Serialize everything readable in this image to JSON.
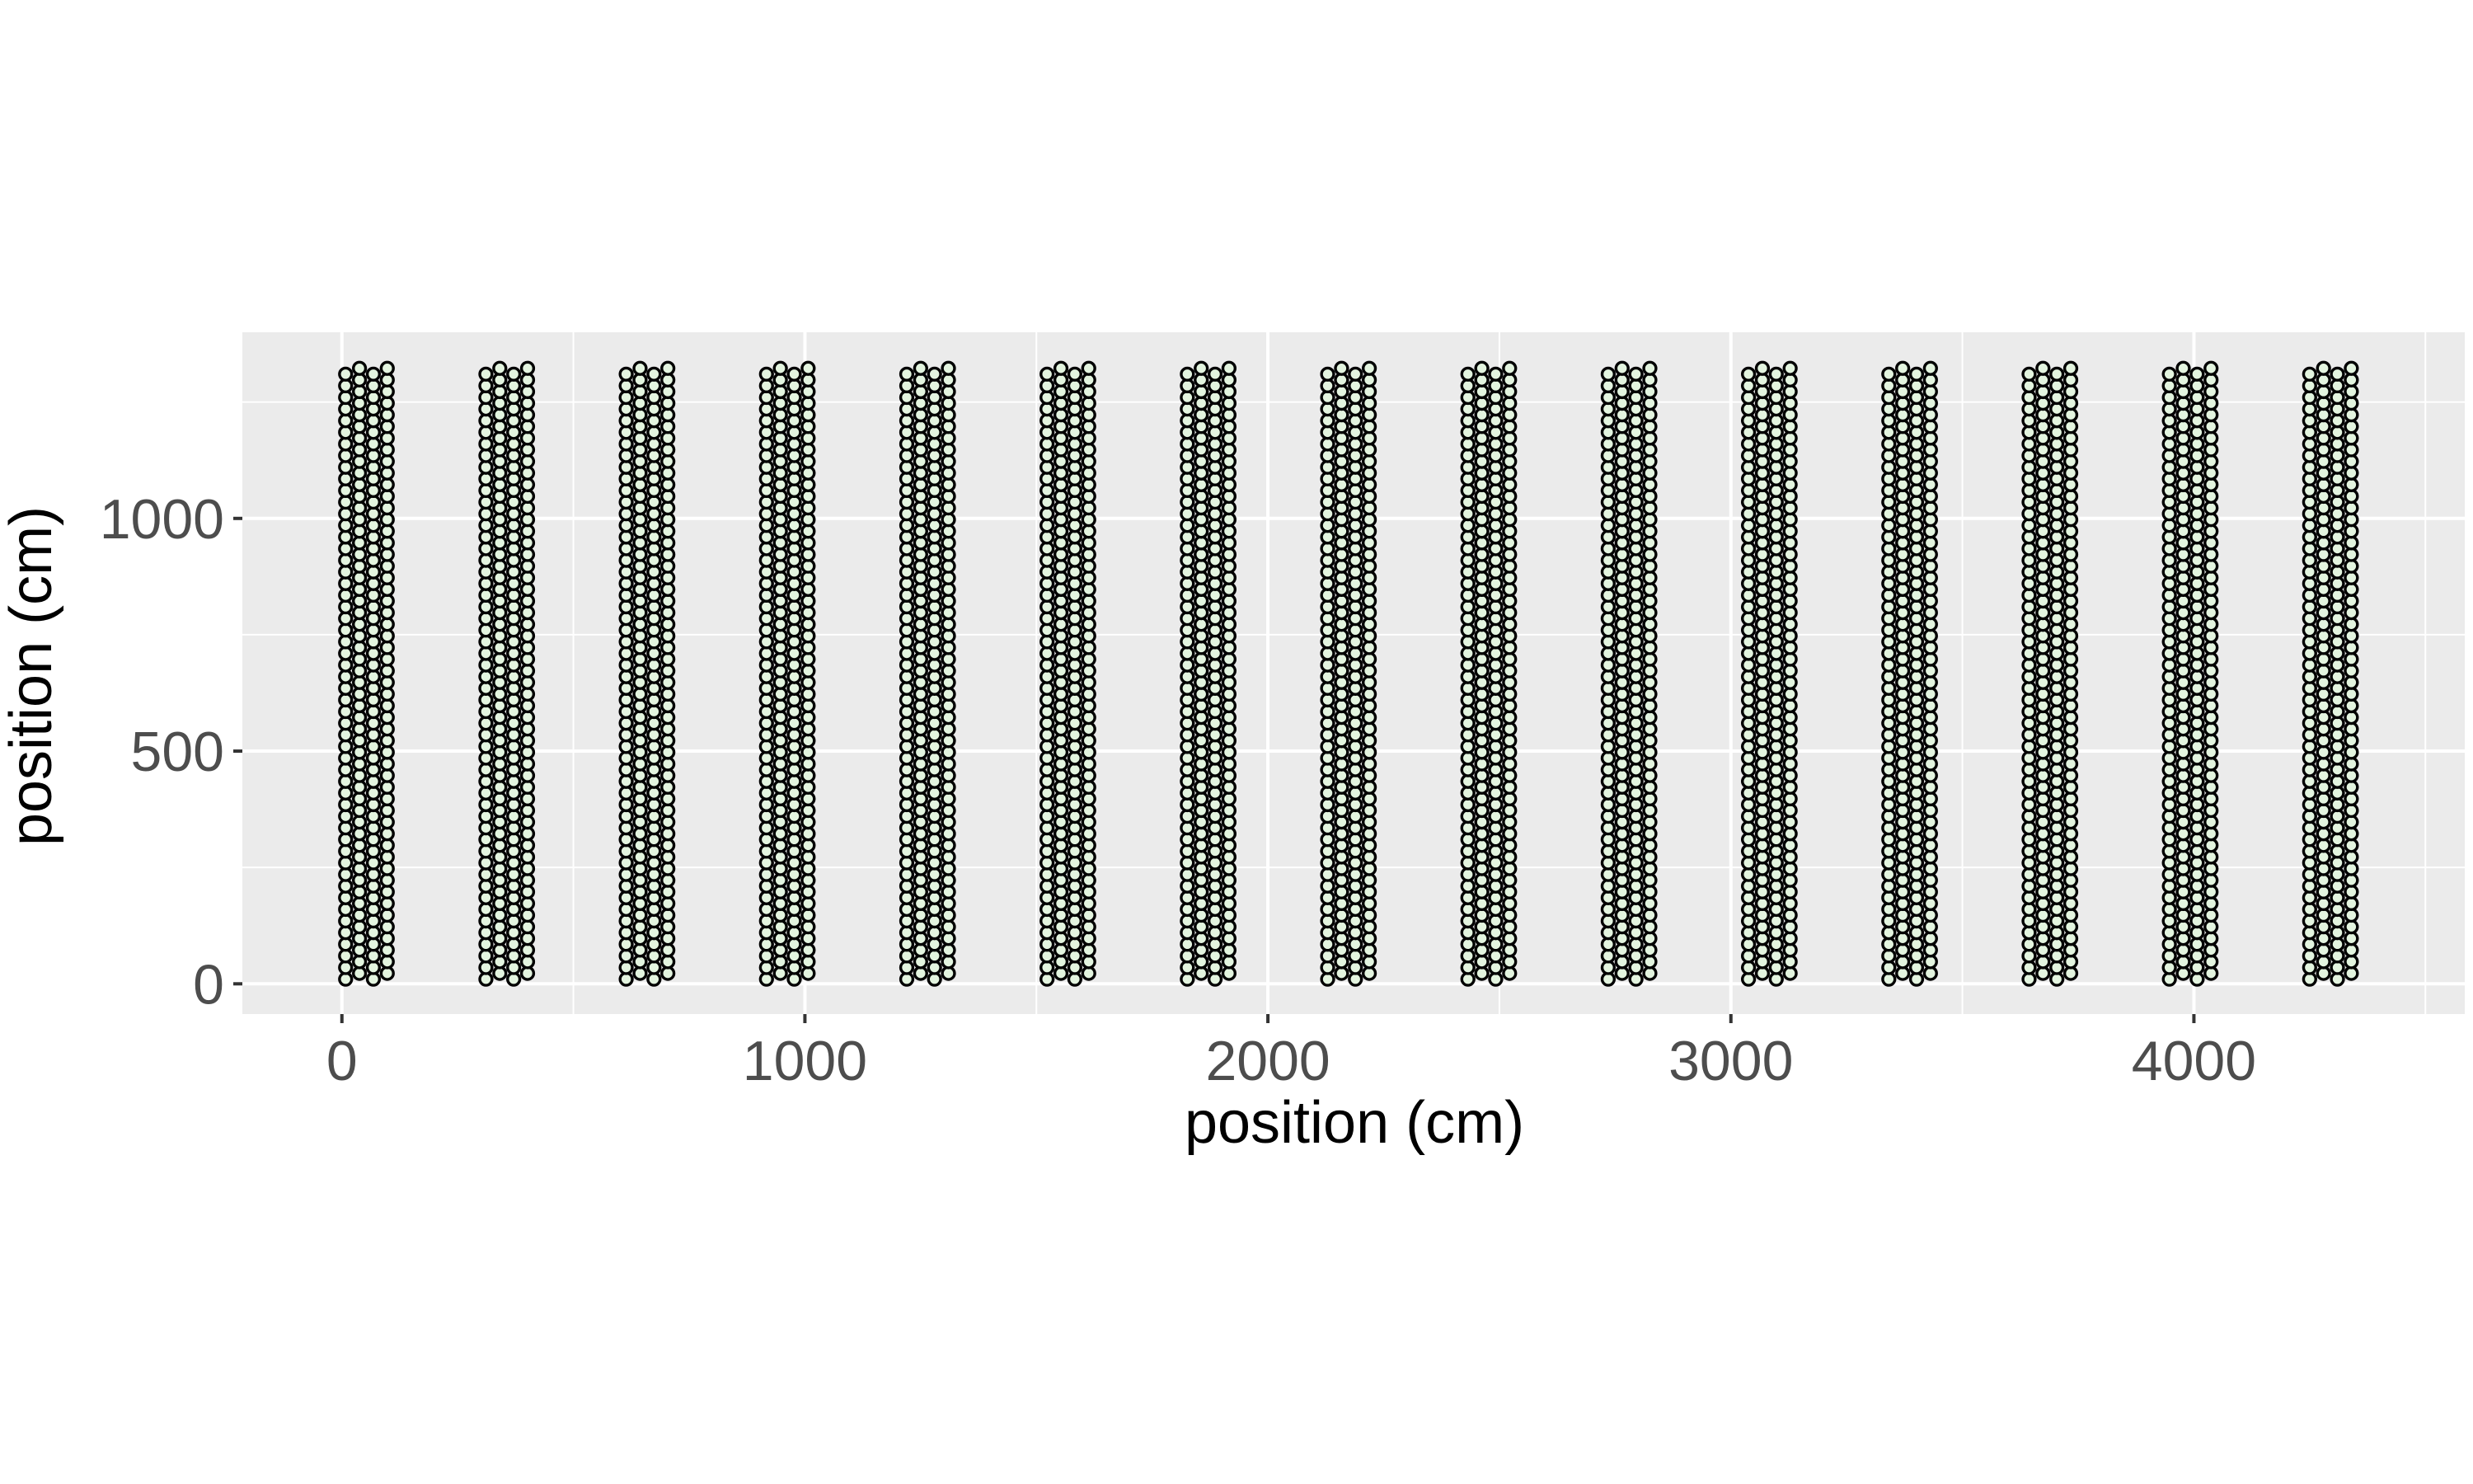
{
  "chart_data": {
    "type": "scatter",
    "title": "",
    "xlabel": "position (cm)",
    "ylabel": "position (cm)",
    "xlim": [
      -215,
      4585
    ],
    "ylim": [
      -65,
      1400
    ],
    "x_ticks": [
      0,
      1000,
      2000,
      3000,
      4000
    ],
    "y_ticks": [
      0,
      500,
      1000
    ],
    "x_minor_gridlines": [
      500,
      1500,
      2500,
      3500,
      4500
    ],
    "y_minor_gridlines": [
      250,
      750,
      1250
    ],
    "grid": true,
    "legend": "none",
    "colors": {
      "panel_background": "#ebebeb",
      "grid_line": "#ffffff",
      "point_fill": "#e3f4df",
      "point_stroke": "#000000",
      "tick_text": "#4d4d4d",
      "axis_title_text": "#000000"
    },
    "pattern": {
      "description": "15 arrays of hexagonally packed circular points; 4 columns per array",
      "array_centers_x": [
        53,
        356,
        659,
        962,
        1265,
        1568,
        1871,
        2174,
        2477,
        2780,
        3083,
        3386,
        3689,
        3992,
        4295
      ],
      "column_spacing_x": 30,
      "row_spacing_y": 25,
      "lower_column_y_start": 10,
      "lower_column_y_end": 1310,
      "upper_column_y_start": 22.5,
      "upper_column_y_end": 1322.5,
      "point_diameter_cm": 30
    }
  }
}
